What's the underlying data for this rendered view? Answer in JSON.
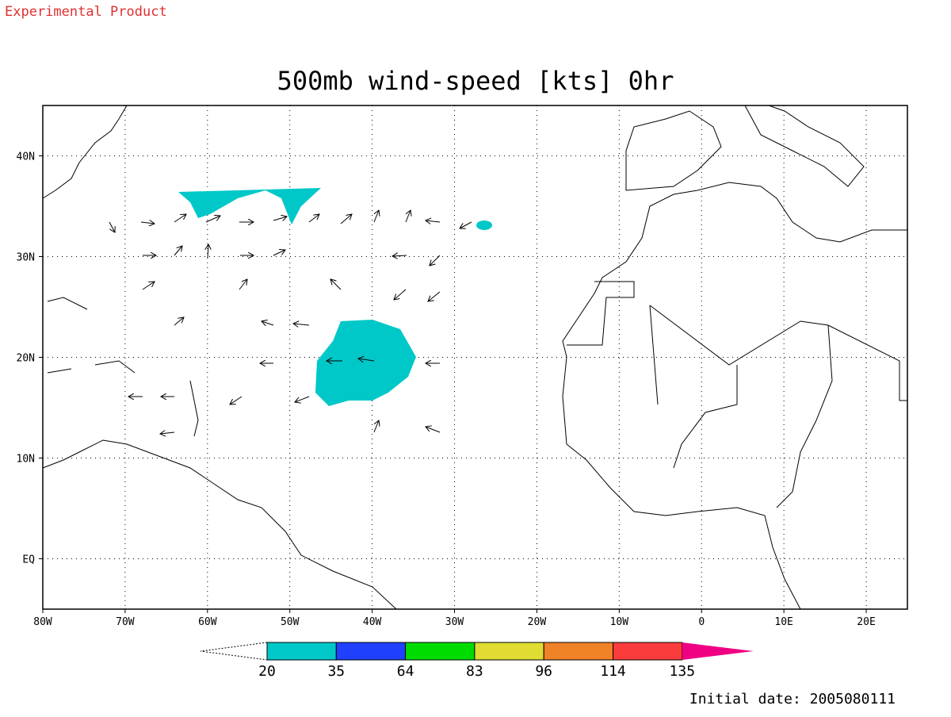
{
  "header": {
    "note": "Experimental Product"
  },
  "map": {
    "title": "500mb wind-speed [kts] 0hr",
    "xlim": [
      -80,
      25
    ],
    "ylim": [
      -5,
      45
    ],
    "xticks": [
      {
        "value": -80,
        "label": "80W"
      },
      {
        "value": -70,
        "label": "70W"
      },
      {
        "value": -60,
        "label": "60W"
      },
      {
        "value": -50,
        "label": "50W"
      },
      {
        "value": -40,
        "label": "40W"
      },
      {
        "value": -30,
        "label": "30W"
      },
      {
        "value": -20,
        "label": "20W"
      },
      {
        "value": -10,
        "label": "10W"
      },
      0,
      {
        "value": 10,
        "label": "10E"
      },
      {
        "value": 20,
        "label": "20E"
      }
    ],
    "yticks": [
      {
        "value": 0,
        "label": "EQ"
      },
      {
        "value": 10,
        "label": "10N"
      },
      {
        "value": 20,
        "label": "20N"
      },
      {
        "value": 30,
        "label": "30N"
      },
      {
        "value": 40,
        "label": "40N"
      }
    ],
    "grid": true
  },
  "colorbar": {
    "levels": [
      20,
      35,
      64,
      83,
      96,
      114,
      135
    ],
    "colors": [
      "#00c8c8",
      "#2040ff",
      "#00dc00",
      "#e0dc32",
      "#f08228",
      "#fa3c3c",
      "#f00082"
    ]
  },
  "footer": {
    "initial_date": "Initial date: 2005080111"
  }
}
